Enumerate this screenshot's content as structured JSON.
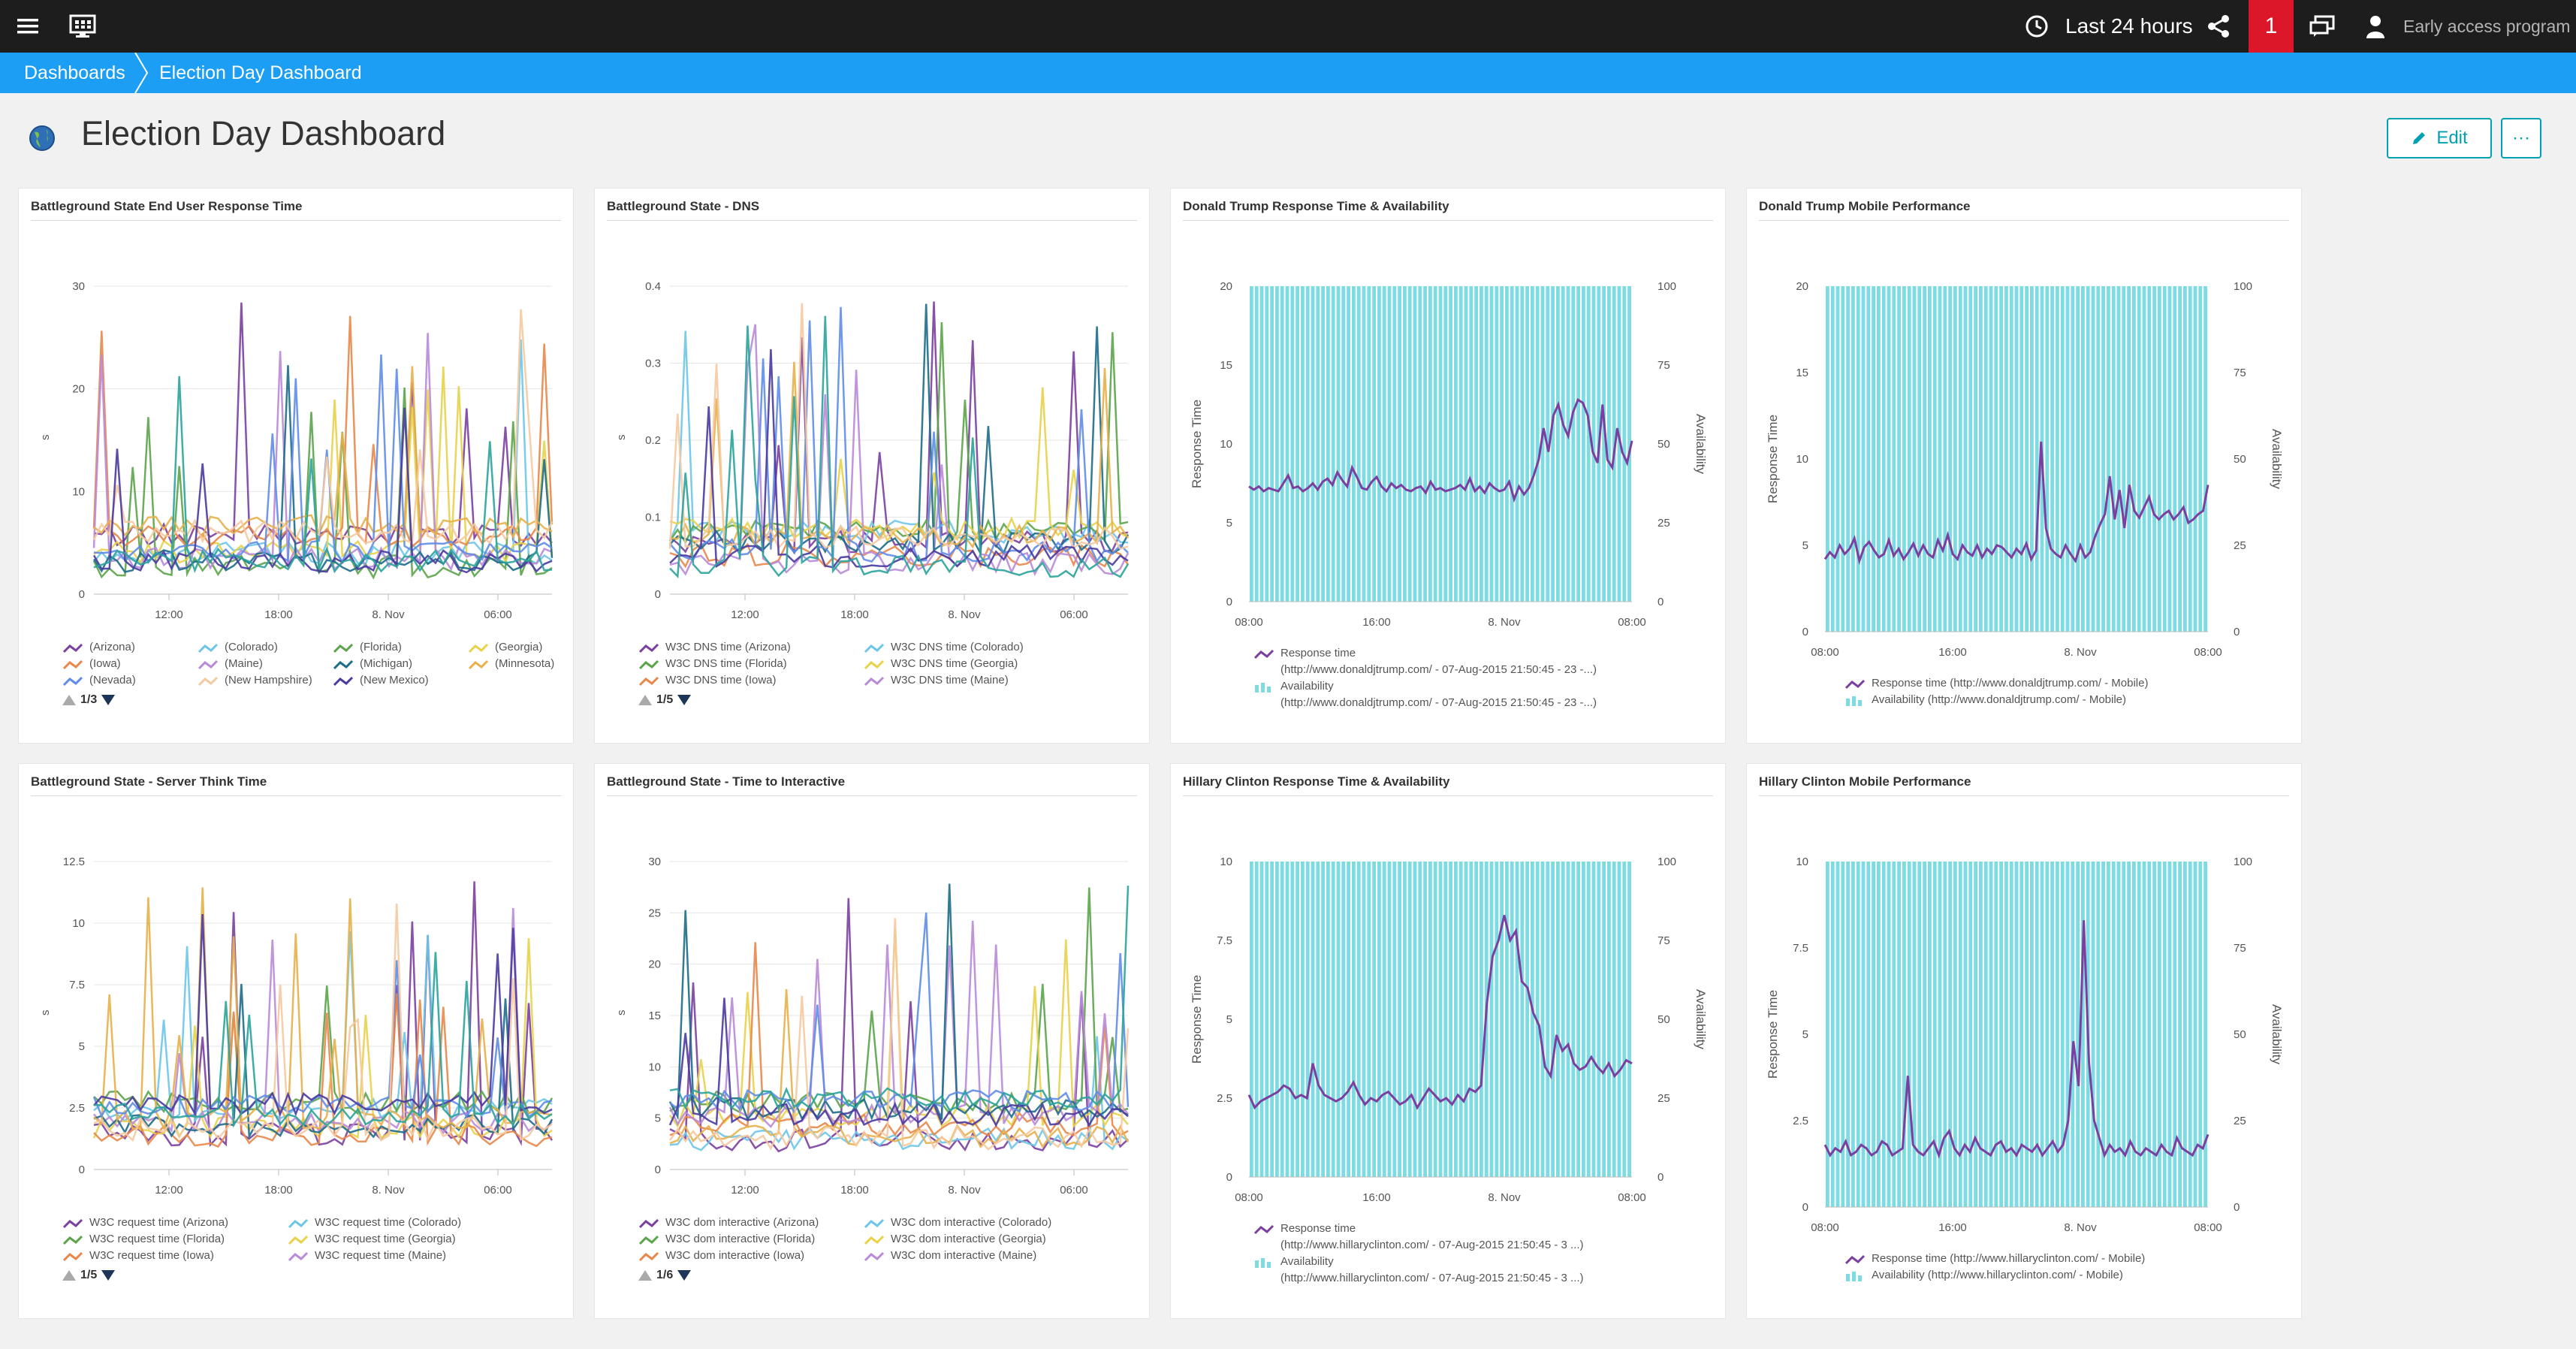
{
  "topbar": {
    "menu_icon": "hamburger-menu-icon",
    "logo_icon": "monitor-logo-icon",
    "clock_icon": "clock-icon",
    "timeframe": "Last 24 hours",
    "share_icon": "share-icon",
    "problems_count": "1",
    "chat_icon": "feedback-icon",
    "user_icon": "user-icon",
    "program_label": "Early access program",
    "colors": {
      "bar": "#1d1d1d",
      "alert": "#dc172a"
    }
  },
  "breadcrumb": {
    "items": [
      "Dashboards",
      "Election Day Dashboard"
    ],
    "color": "#1b9ef3"
  },
  "page": {
    "title_icon": "globe-icon",
    "title": "Election Day Dashboard",
    "edit_label": "Edit",
    "edit_icon": "pencil-icon",
    "more_label": "···"
  },
  "tiles": [
    {
      "title": "Battleground State End User Response Time",
      "chart_data": {
        "type": "line",
        "ylabel": "s",
        "yticks": [
          "30",
          "20",
          "10",
          "0"
        ],
        "xticks": [
          "12:00",
          "18:00",
          "8. Nov",
          "06:00"
        ],
        "legend": [
          "(Arizona)",
          "(Colorado)",
          "(Florida)",
          "(Georgia)",
          "(Iowa)",
          "(Maine)",
          "(Michigan)",
          "(Minnesota)",
          "(Nevada)",
          "(New Hampshire)",
          "(New Mexico)"
        ],
        "pager": "1/3"
      }
    },
    {
      "title": "Battleground State - DNS",
      "chart_data": {
        "type": "line",
        "ylabel": "s",
        "yticks": [
          "0.4",
          "0.3",
          "0.2",
          "0.1",
          "0"
        ],
        "xticks": [
          "12:00",
          "18:00",
          "8. Nov",
          "06:00"
        ],
        "legend": [
          "W3C DNS time (Arizona)",
          "W3C DNS time (Colorado)",
          "W3C DNS time (Florida)",
          "W3C DNS time (Georgia)",
          "W3C DNS time (Iowa)",
          "W3C DNS time (Maine)"
        ],
        "pager": "1/5"
      }
    },
    {
      "title": "Donald Trump Response Time & Availability",
      "chart_data": {
        "type": "bar",
        "ylabel": "Response Time",
        "y2label": "Availability",
        "yticks": [
          "20",
          "15",
          "10",
          "5",
          "0"
        ],
        "y2ticks": [
          "100",
          "75",
          "50",
          "25",
          "0"
        ],
        "xticks": [
          "08:00",
          "16:00",
          "8. Nov",
          "08:00"
        ],
        "legend": [
          "Response time (http://www.donaldjtrump.com/ - 07-Aug-2015 21:50:45 - 23 -...)",
          "Availability (http://www.donaldjtrump.com/ - 07-Aug-2015 21:50:45 - 23 -...)"
        ],
        "legend_lines": [
          [
            "Response time",
            "(http://www.donaldjtrump.com/ - 07-Aug-2015 21:50:45 - 23 -...)"
          ],
          [
            "Availability",
            "(http://www.donaldjtrump.com/ - 07-Aug-2015 21:50:45 - 23 -...)"
          ]
        ],
        "ymax": 20,
        "series": [
          {
            "name": "Response time",
            "values": [
              7.3,
              7.1,
              7.3,
              7.0,
              7.2,
              7.1,
              7.0,
              7.5,
              8.0,
              7.2,
              7.3,
              7.0,
              7.2,
              7.5,
              7.1,
              7.6,
              7.8,
              7.4,
              8.2,
              7.7,
              7.3,
              8.5,
              7.9,
              7.2,
              7.1,
              7.6,
              7.9,
              7.3,
              7.0,
              7.5,
              7.2,
              7.4,
              7.1,
              7.0,
              7.2,
              7.3,
              6.9,
              7.6,
              7.1,
              7.2,
              7.0,
              7.1,
              7.2,
              7.4,
              7.1,
              7.8,
              7.0,
              7.3,
              6.9,
              7.5,
              7.2,
              7.0,
              7.1,
              7.6,
              6.5,
              7.3,
              6.8,
              7.2,
              8.0,
              9.0,
              11.0,
              9.5,
              11.8,
              12.5,
              11.2,
              10.5,
              12.0,
              12.8,
              12.6,
              11.8,
              9.5,
              8.8,
              12.5,
              9.0,
              8.5,
              11.0,
              9.5,
              8.8,
              10.2
            ]
          }
        ]
      }
    },
    {
      "title": "Donald Trump Mobile Performance",
      "chart_data": {
        "type": "bar",
        "ylabel": "Response Time",
        "y2label": "Availability",
        "yticks": [
          "20",
          "15",
          "10",
          "5",
          "0"
        ],
        "y2ticks": [
          "100",
          "75",
          "50",
          "25",
          "0"
        ],
        "xticks": [
          "08:00",
          "16:00",
          "8. Nov",
          "08:00"
        ],
        "legend": [
          "Response time (http://www.donaldjtrump.com/ - Mobile)",
          "Availability (http://www.donaldjtrump.com/ - Mobile)"
        ],
        "legend_lines": [
          [
            "Response time (http://www.donaldjtrump.com/ - Mobile)"
          ],
          [
            "Availability (http://www.donaldjtrump.com/ - Mobile)"
          ]
        ],
        "ymax": 20,
        "series": [
          {
            "name": "Response time",
            "values": [
              4.2,
              4.6,
              4.3,
              5.0,
              4.5,
              4.8,
              5.4,
              4.1,
              4.9,
              5.2,
              4.7,
              4.3,
              4.5,
              5.3,
              4.4,
              4.8,
              4.2,
              4.6,
              5.1,
              4.4,
              5.0,
              4.5,
              4.3,
              5.3,
              4.7,
              5.6,
              4.5,
              4.2,
              5.0,
              4.6,
              4.4,
              5.0,
              4.3,
              4.8,
              4.5,
              5.0,
              4.9,
              4.6,
              4.3,
              4.8,
              4.5,
              5.1,
              4.2,
              4.7,
              11.0,
              6.0,
              4.8,
              4.5,
              4.3,
              5.0,
              4.5,
              4.1,
              5.0,
              4.3,
              4.6,
              5.5,
              6.2,
              6.8,
              9.0,
              6.5,
              8.2,
              6.0,
              8.5,
              7.0,
              6.6,
              7.2,
              7.8,
              6.8,
              6.5,
              6.8,
              7.0,
              6.5,
              6.8,
              7.2,
              6.3,
              6.5,
              6.8,
              7.0,
              8.5
            ]
          }
        ]
      }
    },
    {
      "title": "Battleground State - Server Think Time",
      "chart_data": {
        "type": "line",
        "ylabel": "s",
        "yticks": [
          "12.5",
          "10",
          "7.5",
          "5",
          "2.5",
          "0"
        ],
        "xticks": [
          "12:00",
          "18:00",
          "8. Nov",
          "06:00"
        ],
        "legend": [
          "W3C request time (Arizona)",
          "W3C request time (Colorado)",
          "W3C request time (Florida)",
          "W3C request time (Georgia)",
          "W3C request time (Iowa)",
          "W3C request time (Maine)"
        ],
        "pager": "1/5"
      }
    },
    {
      "title": "Battleground State - Time to Interactive",
      "chart_data": {
        "type": "line",
        "ylabel": "s",
        "yticks": [
          "30",
          "25",
          "20",
          "15",
          "10",
          "5",
          "0"
        ],
        "xticks": [
          "12:00",
          "18:00",
          "8. Nov",
          "06:00"
        ],
        "legend": [
          "W3C dom interactive (Arizona)",
          "W3C dom interactive (Colorado)",
          "W3C dom interactive (Florida)",
          "W3C dom interactive (Georgia)",
          "W3C dom interactive (Iowa)",
          "W3C dom interactive (Maine)"
        ],
        "pager": "1/6"
      }
    },
    {
      "title": "Hillary Clinton Response Time & Availability",
      "chart_data": {
        "type": "bar",
        "ylabel": "Response Time",
        "y2label": "Availability",
        "yticks": [
          "10",
          "7.5",
          "5",
          "2.5",
          "0"
        ],
        "y2ticks": [
          "100",
          "75",
          "50",
          "25",
          "0"
        ],
        "xticks": [
          "08:00",
          "16:00",
          "8. Nov",
          "08:00"
        ],
        "legend": [
          "Response time (http://www.hillaryclinton.com/ - 07-Aug-2015 21:50:45 - 3 ...)",
          "Availability (http://www.hillaryclinton.com/ - 07-Aug-2015 21:50:45 - 3 ...)"
        ],
        "legend_lines": [
          [
            "Response time",
            "(http://www.hillaryclinton.com/ - 07-Aug-2015 21:50:45 - 3 ...)"
          ],
          [
            "Availability",
            "(http://www.hillaryclinton.com/ - 07-Aug-2015 21:50:45 - 3 ...)"
          ]
        ],
        "ymax": 10,
        "series": [
          {
            "name": "Response time",
            "values": [
              2.6,
              2.2,
              2.4,
              2.5,
              2.6,
              2.7,
              2.9,
              2.8,
              2.5,
              2.6,
              2.5,
              3.6,
              2.9,
              2.6,
              2.5,
              2.4,
              2.5,
              2.7,
              3.0,
              2.6,
              2.3,
              2.5,
              2.4,
              2.6,
              2.7,
              2.5,
              2.3,
              2.4,
              2.6,
              2.2,
              2.5,
              2.8,
              2.6,
              2.4,
              2.5,
              2.3,
              2.6,
              2.4,
              2.8,
              2.7,
              2.9,
              5.5,
              7.0,
              7.5,
              8.3,
              7.5,
              7.8,
              6.2,
              6.0,
              5.2,
              4.8,
              3.5,
              3.2,
              4.5,
              4.0,
              4.2,
              3.6,
              3.4,
              3.5,
              3.8,
              3.5,
              3.3,
              3.6,
              3.2,
              3.4,
              3.7,
              3.6
            ]
          }
        ]
      }
    },
    {
      "title": "Hillary Clinton Mobile Performance",
      "chart_data": {
        "type": "bar",
        "ylabel": "Response Time",
        "y2label": "Availability",
        "yticks": [
          "10",
          "7.5",
          "5",
          "2.5",
          "0"
        ],
        "y2ticks": [
          "100",
          "75",
          "50",
          "25",
          "0"
        ],
        "xticks": [
          "08:00",
          "16:00",
          "8. Nov",
          "08:00"
        ],
        "legend": [
          "Response time (http://www.hillaryclinton.com/ - Mobile)",
          "Availability (http://www.hillaryclinton.com/ - Mobile)"
        ],
        "legend_lines": [
          [
            "Response time (http://www.hillaryclinton.com/ - Mobile)"
          ],
          [
            "Availability (http://www.hillaryclinton.com/ - Mobile)"
          ]
        ],
        "ymax": 10,
        "series": [
          {
            "name": "Response time",
            "values": [
              1.8,
              1.5,
              1.7,
              1.6,
              1.9,
              1.5,
              1.6,
              1.8,
              1.7,
              1.5,
              1.6,
              1.9,
              1.8,
              1.5,
              1.6,
              1.7,
              3.8,
              1.8,
              1.6,
              1.5,
              1.7,
              1.9,
              1.5,
              2.0,
              2.2,
              1.7,
              1.5,
              1.8,
              1.6,
              2.0,
              1.7,
              1.6,
              1.5,
              1.8,
              1.9,
              1.6,
              1.7,
              1.5,
              1.8,
              1.7,
              1.6,
              1.8,
              1.5,
              1.7,
              1.9,
              1.6,
              1.8,
              2.5,
              4.8,
              3.5,
              8.3,
              4.2,
              2.5,
              2.0,
              1.5,
              1.8,
              1.6,
              1.7,
              1.5,
              1.9,
              1.6,
              1.5,
              1.7,
              1.6,
              1.5,
              1.8,
              1.6,
              1.5,
              2.0,
              1.7,
              1.6,
              1.5,
              1.8,
              1.7,
              2.1
            ]
          }
        ]
      }
    }
  ]
}
